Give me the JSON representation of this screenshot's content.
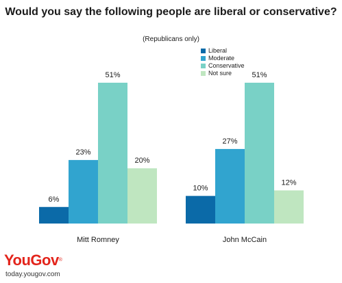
{
  "chart_data": {
    "type": "bar",
    "title": "Would you say the following people are liberal or conservative?",
    "subtitle": "(Republicans only)",
    "categories": [
      "Mitt Romney",
      "John McCain"
    ],
    "series": [
      {
        "name": "Liberal",
        "color": "#0b6aa8",
        "values": [
          6,
          10
        ]
      },
      {
        "name": "Moderate",
        "color": "#31a4cf",
        "values": [
          23,
          27
        ]
      },
      {
        "name": "Conservative",
        "color": "#79d1c6",
        "values": [
          51,
          51
        ]
      },
      {
        "name": "Not sure",
        "color": "#bfe6c0",
        "values": [
          20,
          12
        ]
      }
    ],
    "value_suffix": "%",
    "ylim": [
      0,
      51
    ],
    "legend_position": "top-right",
    "grid": false
  },
  "branding": {
    "logo": "YouGov",
    "url": "today.yougov.com"
  }
}
